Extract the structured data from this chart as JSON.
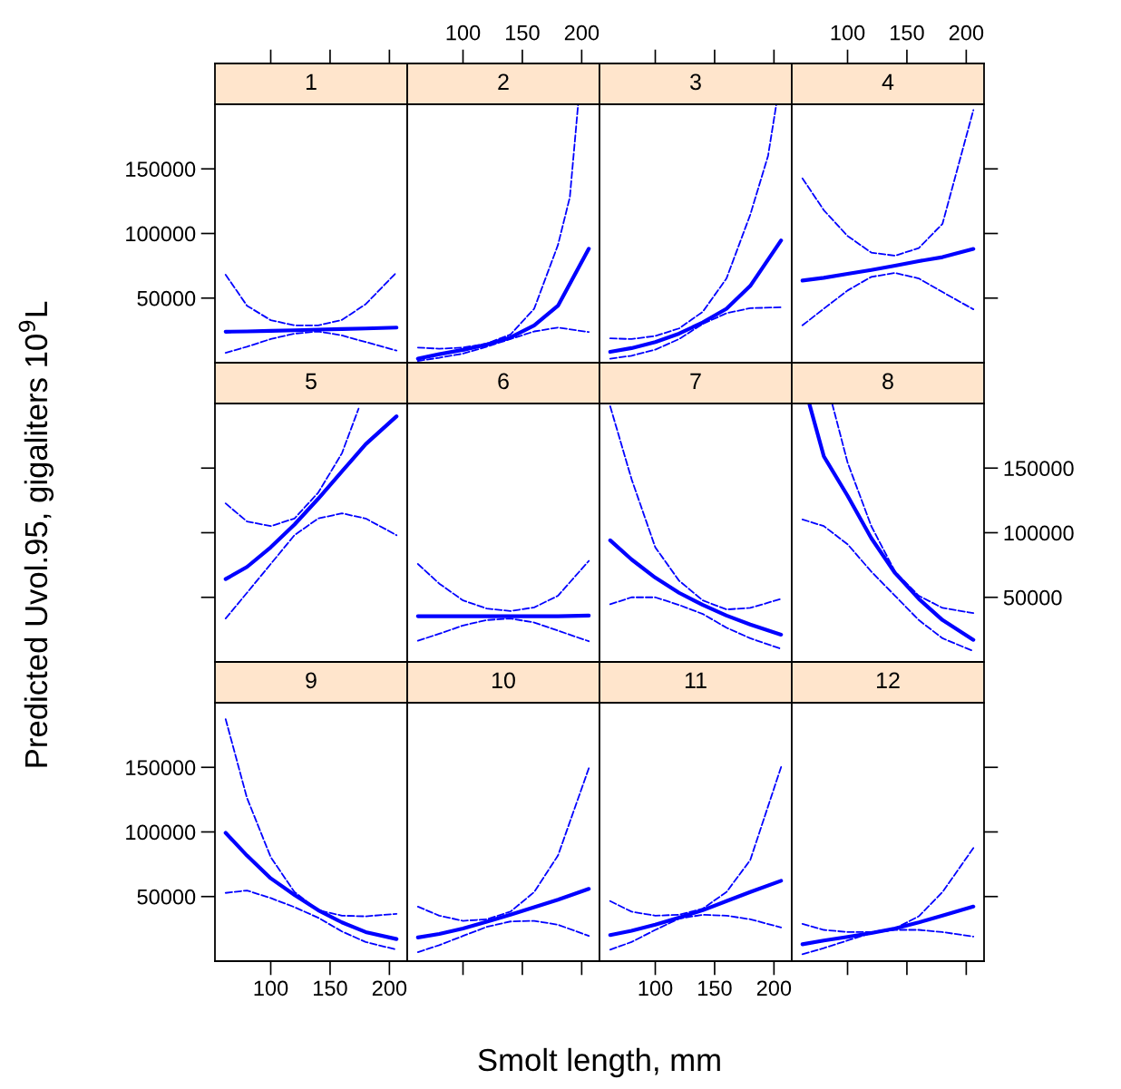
{
  "chart_data": [
    {
      "type": "line",
      "title": "1",
      "xlabel": "Smolt length, mm",
      "ylabel": "Predicted Uvol.95, gigaliters 10$^{9}$L",
      "xlim": [
        53,
        215
      ],
      "xticks": [
        100,
        150,
        200
      ],
      "ylim": [
        0,
        200000
      ],
      "yticks": [
        50000,
        100000,
        150000
      ],
      "tick_labels": "y",
      "x": [
        62,
        80,
        100,
        120,
        140,
        160,
        180,
        206
      ],
      "series": [
        {
          "color": "#0000ff",
          "line_style": "solid",
          "values": [
            24000,
            24200,
            24600,
            25100,
            25600,
            26100,
            26500,
            27200
          ]
        },
        {
          "color": "#0000ff",
          "line_style": "dashed",
          "values": [
            68100,
            44100,
            32900,
            28900,
            28900,
            33100,
            45300,
            69900
          ]
        },
        {
          "color": "#0000ff",
          "line_style": "dashed",
          "values": [
            7700,
            12400,
            18300,
            22500,
            24200,
            21100,
            16000,
            9400
          ]
        }
      ]
    },
    {
      "type": "line",
      "title": "2",
      "xlim": [
        53,
        215
      ],
      "xticks": [
        100,
        150,
        200
      ],
      "ylim": [
        0,
        200000
      ],
      "yticks": [
        50000,
        100000,
        150000
      ],
      "tick_labels": "x",
      "x": [
        62,
        80,
        100,
        120,
        140,
        160,
        180,
        206
      ],
      "series": [
        {
          "color": "#0000ff",
          "line_style": "solid",
          "values": [
            3100,
            6600,
            9900,
            14100,
            19500,
            28900,
            44100,
            88200
          ]
        },
        {
          "color": "#0000ff",
          "line_style": "dashed",
          "x": [
            62,
            80,
            100,
            120,
            140,
            160,
            180,
            190,
            197
          ],
          "values": [
            11700,
            10800,
            11700,
            14800,
            21800,
            41800,
            91100,
            128000,
            200000
          ]
        },
        {
          "color": "#0000ff",
          "line_style": "dashed",
          "values": [
            1400,
            3800,
            7000,
            12400,
            18300,
            24200,
            27200,
            23700
          ]
        }
      ]
    },
    {
      "type": "line",
      "title": "3",
      "xlim": [
        53,
        215
      ],
      "xticks": [
        100,
        150,
        200
      ],
      "ylim": [
        0,
        200000
      ],
      "yticks": [
        50000,
        100000,
        150000
      ],
      "tick_labels": false,
      "x": [
        62,
        80,
        100,
        120,
        140,
        160,
        180,
        206
      ],
      "series": [
        {
          "color": "#0000ff",
          "line_style": "solid",
          "values": [
            8400,
            11300,
            16000,
            22500,
            31200,
            41800,
            59400,
            94600
          ]
        },
        {
          "color": "#0000ff",
          "line_style": "dashed",
          "x": [
            62,
            80,
            100,
            120,
            140,
            160,
            180,
            195,
            202
          ],
          "values": [
            18800,
            18300,
            20700,
            26500,
            39400,
            65200,
            114500,
            160000,
            200000
          ]
        },
        {
          "color": "#0000ff",
          "line_style": "dashed",
          "values": [
            3100,
            5400,
            10100,
            18300,
            30000,
            38300,
            42200,
            42900
          ]
        }
      ]
    },
    {
      "type": "line",
      "title": "4",
      "xlim": [
        53,
        215
      ],
      "xticks": [
        100,
        150,
        200
      ],
      "ylim": [
        0,
        200000
      ],
      "yticks": [
        50000,
        100000,
        150000
      ],
      "tick_labels": "x",
      "x": [
        62,
        80,
        100,
        120,
        140,
        160,
        180,
        206
      ],
      "series": [
        {
          "color": "#0000ff",
          "line_style": "solid",
          "values": [
            63600,
            65700,
            68800,
            71800,
            75100,
            78600,
            81700,
            88000
          ]
        },
        {
          "color": "#0000ff",
          "line_style": "dashed",
          "values": [
            142700,
            118000,
            98100,
            85200,
            82800,
            88700,
            107500,
            195500
          ]
        },
        {
          "color": "#0000ff",
          "line_style": "dashed",
          "values": [
            28900,
            41800,
            55900,
            66400,
            69500,
            65200,
            54700,
            41300
          ]
        }
      ]
    },
    {
      "type": "line",
      "title": "5",
      "xlim": [
        53,
        215
      ],
      "xticks": [
        100,
        150,
        200
      ],
      "ylim": [
        0,
        200000
      ],
      "yticks": [
        50000,
        100000,
        150000
      ],
      "tick_labels": false,
      "x": [
        62,
        80,
        100,
        120,
        140,
        160,
        180,
        206
      ],
      "series": [
        {
          "color": "#0000ff",
          "line_style": "solid",
          "values": [
            64100,
            73500,
            88700,
            106300,
            126300,
            147400,
            168500,
            190100
          ]
        },
        {
          "color": "#0000ff",
          "line_style": "dashed",
          "x": [
            62,
            80,
            100,
            120,
            140,
            160,
            174
          ],
          "values": [
            122700,
            108700,
            105100,
            111000,
            131000,
            161500,
            196000
          ]
        },
        {
          "color": "#0000ff",
          "line_style": "dashed",
          "values": [
            33600,
            53500,
            75800,
            98100,
            111000,
            115000,
            111000,
            98100
          ]
        }
      ]
    },
    {
      "type": "line",
      "title": "6",
      "xlim": [
        53,
        215
      ],
      "xticks": [
        100,
        150,
        200
      ],
      "ylim": [
        0,
        200000
      ],
      "yticks": [
        50000,
        100000,
        150000
      ],
      "tick_labels": false,
      "x": [
        62,
        80,
        100,
        120,
        140,
        160,
        180,
        206
      ],
      "series": [
        {
          "color": "#0000ff",
          "line_style": "solid",
          "values": [
            35400,
            35400,
            35400,
            35400,
            35400,
            35400,
            35400,
            35900
          ]
        },
        {
          "color": "#0000ff",
          "line_style": "dashed",
          "values": [
            75800,
            60600,
            47600,
            41300,
            39400,
            42200,
            51200,
            78200
          ]
        },
        {
          "color": "#0000ff",
          "line_style": "dashed",
          "values": [
            16400,
            21800,
            28200,
            32400,
            33600,
            30500,
            24200,
            16000
          ]
        }
      ]
    },
    {
      "type": "line",
      "title": "7",
      "xlim": [
        53,
        215
      ],
      "xticks": [
        100,
        150,
        200
      ],
      "ylim": [
        0,
        200000
      ],
      "yticks": [
        50000,
        100000,
        150000
      ],
      "tick_labels": false,
      "x": [
        62,
        80,
        100,
        120,
        140,
        160,
        180,
        206
      ],
      "series": [
        {
          "color": "#0000ff",
          "line_style": "solid",
          "values": [
            94100,
            79300,
            65200,
            53500,
            44100,
            35900,
            28900,
            21100
          ]
        },
        {
          "color": "#0000ff",
          "line_style": "dashed",
          "values": [
            197900,
            141500,
            88700,
            62900,
            47600,
            40600,
            41800,
            48800
          ]
        },
        {
          "color": "#0000ff",
          "line_style": "dashed",
          "values": [
            44600,
            50000,
            50000,
            44100,
            37100,
            26500,
            18300,
            10100
          ]
        }
      ]
    },
    {
      "type": "line",
      "title": "8",
      "xlim": [
        53,
        215
      ],
      "xticks": [
        100,
        150,
        200
      ],
      "ylim": [
        0,
        200000
      ],
      "yticks": [
        50000,
        100000,
        150000
      ],
      "tick_labels": "y",
      "x": [
        62,
        80,
        100,
        120,
        140,
        160,
        180,
        206
      ],
      "series": [
        {
          "color": "#0000ff",
          "line_style": "solid",
          "x": [
            68,
            80,
            100,
            120,
            140,
            160,
            180,
            206
          ],
          "values": [
            199000,
            159100,
            128600,
            95800,
            68800,
            48800,
            32400,
            17100
          ]
        },
        {
          "color": "#0000ff",
          "line_style": "dashed",
          "x": [
            87,
            100,
            120,
            140,
            160,
            180,
            206
          ],
          "values": [
            200000,
            154400,
            105100,
            69900,
            51200,
            41800,
            37800
          ]
        },
        {
          "color": "#0000ff",
          "line_style": "dashed",
          "values": [
            110300,
            105100,
            91100,
            69900,
            51200,
            32400,
            18300,
            8400
          ]
        }
      ]
    },
    {
      "type": "line",
      "title": "9",
      "xlim": [
        53,
        215
      ],
      "xticks": [
        100,
        150,
        200
      ],
      "ylim": [
        0,
        200000
      ],
      "yticks": [
        50000,
        100000,
        150000
      ],
      "x": [
        62,
        80,
        100,
        120,
        140,
        160,
        180,
        206
      ],
      "series": [
        {
          "color": "#0000ff",
          "line_style": "solid",
          "values": [
            99300,
            81700,
            64100,
            51200,
            39400,
            30000,
            22500,
            17100
          ]
        },
        {
          "color": "#0000ff",
          "line_style": "dashed",
          "values": [
            187300,
            126300,
            80500,
            53500,
            39400,
            35200,
            34700,
            36600
          ]
        },
        {
          "color": "#0000ff",
          "line_style": "dashed",
          "values": [
            52800,
            54700,
            48800,
            41800,
            33600,
            23000,
            14800,
            8900
          ]
        }
      ]
    },
    {
      "type": "line",
      "title": "10",
      "xlim": [
        53,
        215
      ],
      "xticks": [
        100,
        150,
        200
      ],
      "ylim": [
        0,
        200000
      ],
      "yticks": [
        50000,
        100000,
        150000
      ],
      "tick_labels": false,
      "x": [
        62,
        80,
        100,
        120,
        140,
        160,
        180,
        206
      ],
      "series": [
        {
          "color": "#0000ff",
          "line_style": "solid",
          "values": [
            18300,
            21100,
            25300,
            30500,
            35900,
            41800,
            47600,
            55900
          ]
        },
        {
          "color": "#0000ff",
          "line_style": "dashed",
          "values": [
            42200,
            35200,
            31200,
            32400,
            38300,
            53500,
            81700,
            149300
          ]
        },
        {
          "color": "#0000ff",
          "line_style": "dashed",
          "values": [
            7000,
            12400,
            19500,
            26500,
            30700,
            31200,
            28200,
            19500
          ]
        }
      ]
    },
    {
      "type": "line",
      "title": "11",
      "xlim": [
        53,
        215
      ],
      "xticks": [
        100,
        150,
        200
      ],
      "ylim": [
        0,
        200000
      ],
      "yticks": [
        50000,
        100000,
        150000
      ],
      "tick_labels": "x",
      "x": [
        62,
        80,
        100,
        120,
        140,
        160,
        180,
        206
      ],
      "series": [
        {
          "color": "#0000ff",
          "line_style": "solid",
          "values": [
            20200,
            23500,
            28200,
            33600,
            39400,
            46500,
            53500,
            62200
          ]
        },
        {
          "color": "#0000ff",
          "line_style": "dashed",
          "values": [
            46500,
            38300,
            35200,
            35900,
            40600,
            53500,
            78200,
            150200
          ]
        },
        {
          "color": "#0000ff",
          "line_style": "dashed",
          "values": [
            8900,
            14800,
            24200,
            32900,
            35900,
            35200,
            32400,
            26100
          ]
        }
      ]
    },
    {
      "type": "line",
      "title": "12",
      "xlim": [
        53,
        215
      ],
      "xticks": [
        100,
        150,
        200
      ],
      "ylim": [
        0,
        200000
      ],
      "yticks": [
        50000,
        100000,
        150000
      ],
      "tick_labels": false,
      "x": [
        62,
        80,
        100,
        120,
        140,
        160,
        180,
        206
      ],
      "series": [
        {
          "color": "#0000ff",
          "line_style": "solid",
          "values": [
            13100,
            16000,
            18800,
            21800,
            25300,
            30000,
            35200,
            42200
          ]
        },
        {
          "color": "#0000ff",
          "line_style": "dashed",
          "values": [
            28900,
            24200,
            22500,
            22500,
            25300,
            34700,
            53500,
            87500
          ]
        },
        {
          "color": "#0000ff",
          "line_style": "dashed",
          "values": [
            5400,
            10100,
            16000,
            21800,
            24200,
            24200,
            22500,
            19000
          ]
        }
      ]
    }
  ]
}
